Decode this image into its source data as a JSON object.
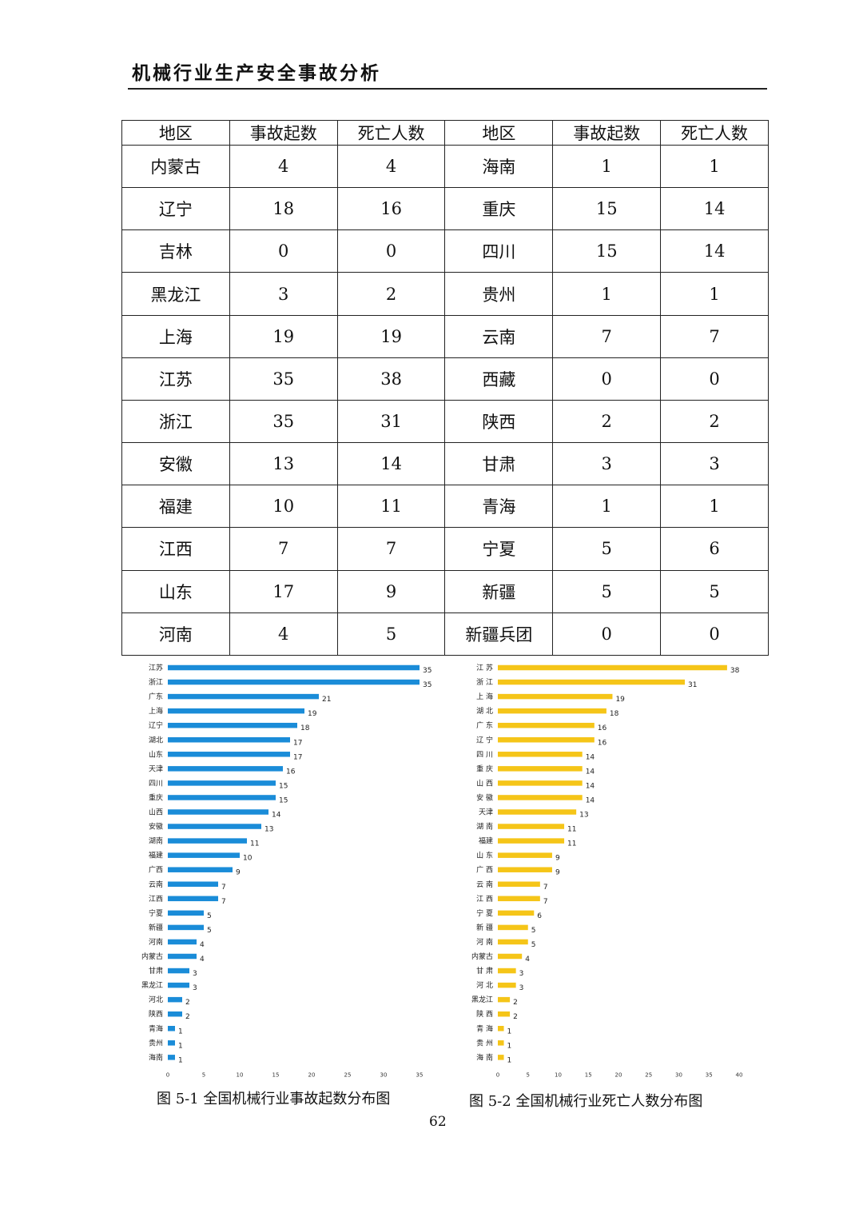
{
  "header": {
    "title": "机械行业生产安全事故分析"
  },
  "table": {
    "headers": [
      "地区",
      "事故起数",
      "死亡人数",
      "地区",
      "事故起数",
      "死亡人数"
    ],
    "rows": [
      [
        "内蒙古",
        "4",
        "4",
        "海南",
        "1",
        "1"
      ],
      [
        "辽宁",
        "18",
        "16",
        "重庆",
        "15",
        "14"
      ],
      [
        "吉林",
        "0",
        "0",
        "四川",
        "15",
        "14"
      ],
      [
        "黑龙江",
        "3",
        "2",
        "贵州",
        "1",
        "1"
      ],
      [
        "上海",
        "19",
        "19",
        "云南",
        "7",
        "7"
      ],
      [
        "江苏",
        "35",
        "38",
        "西藏",
        "0",
        "0"
      ],
      [
        "浙江",
        "35",
        "31",
        "陕西",
        "2",
        "2"
      ],
      [
        "安徽",
        "13",
        "14",
        "甘肃",
        "3",
        "3"
      ],
      [
        "福建",
        "10",
        "11",
        "青海",
        "1",
        "1"
      ],
      [
        "江西",
        "7",
        "7",
        "宁夏",
        "5",
        "6"
      ],
      [
        "山东",
        "17",
        "9",
        "新疆",
        "5",
        "5"
      ],
      [
        "河南",
        "4",
        "5",
        "新疆兵团",
        "0",
        "0"
      ]
    ]
  },
  "chart_data": [
    {
      "type": "bar",
      "orientation": "horizontal",
      "categories": [
        "江苏",
        "浙江",
        "广东",
        "上海",
        "辽宁",
        "湖北",
        "山东",
        "天津",
        "四川",
        "重庆",
        "山西",
        "安徽",
        "湖南",
        "福建",
        "广西",
        "云南",
        "江西",
        "宁夏",
        "新疆",
        "河南",
        "内蒙古",
        "甘肃",
        "黑龙江",
        "河北",
        "陕西",
        "青海",
        "贵州",
        "海南"
      ],
      "values": [
        35,
        35,
        21,
        19,
        18,
        17,
        17,
        16,
        15,
        15,
        14,
        13,
        11,
        10,
        9,
        7,
        7,
        5,
        5,
        4,
        4,
        3,
        3,
        2,
        2,
        1,
        1,
        1
      ],
      "xticks": [
        0,
        5,
        10,
        15,
        20,
        25,
        30,
        35
      ],
      "xlim": [
        0,
        35
      ],
      "color": "#1a8cd8",
      "grid": false,
      "caption": "图 5-1    全国机械行业事故起数分布图"
    },
    {
      "type": "bar",
      "orientation": "horizontal",
      "categories": [
        "江 苏",
        "浙 江",
        "上 海",
        "湖 北",
        "广 东",
        "辽 宁",
        "四 川",
        "重 庆",
        "山 西",
        "安 徽",
        "天津",
        "湖 南",
        "福建",
        "山 东",
        "广 西",
        "云 南",
        "江 西",
        "宁 夏",
        "新 疆",
        "河 南",
        "内蒙古",
        "甘 肃",
        "河 北",
        "黑龙江",
        "陕 西",
        "青 海",
        "贵 州",
        "海 南"
      ],
      "values": [
        38,
        31,
        19,
        18,
        16,
        16,
        14,
        14,
        14,
        14,
        13,
        11,
        11,
        9,
        9,
        7,
        7,
        6,
        5,
        5,
        4,
        3,
        3,
        2,
        2,
        1,
        1,
        1
      ],
      "xticks": [
        0,
        5,
        10,
        15,
        20,
        25,
        30,
        35,
        40
      ],
      "xlim": [
        0,
        40
      ],
      "color": "#f5c518",
      "grid": false,
      "caption": "图 5-2    全国机械行业死亡人数分布图"
    }
  ],
  "page_number": "62"
}
